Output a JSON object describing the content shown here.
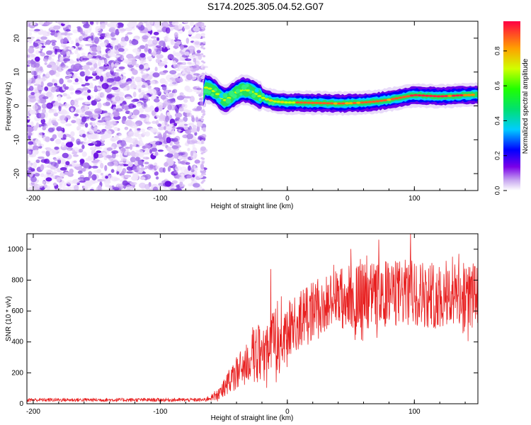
{
  "title": "S174.2025.305.04.52.G07",
  "colors": {
    "snr_line": "#e82020",
    "axis": "#000000",
    "background": "#ffffff"
  },
  "chart_data": [
    {
      "type": "heatmap",
      "name": "spectrogram",
      "xlabel": "Height of straight line (km)",
      "ylabel": "Frequency (Hz)",
      "xlim": [
        -205,
        150
      ],
      "ylim": [
        -25,
        25
      ],
      "x_ticks": [
        -200,
        -100,
        0,
        100
      ],
      "y_ticks": [
        -20,
        -10,
        0,
        10,
        20
      ],
      "noise_region_x": [
        -205,
        -65
      ],
      "signal_path": [
        {
          "x": -65,
          "y": 5.5
        },
        {
          "x": -60,
          "y": 5.0
        },
        {
          "x": -55,
          "y": 3.5
        },
        {
          "x": -50,
          "y": 1.5
        },
        {
          "x": -45,
          "y": 2.5
        },
        {
          "x": -40,
          "y": 4.0
        },
        {
          "x": -35,
          "y": 4.8
        },
        {
          "x": -30,
          "y": 4.5
        },
        {
          "x": -25,
          "y": 3.5
        },
        {
          "x": -20,
          "y": 2.5
        },
        {
          "x": -15,
          "y": 1.8
        },
        {
          "x": -10,
          "y": 1.3
        },
        {
          "x": 0,
          "y": 1.0
        },
        {
          "x": 10,
          "y": 1.0
        },
        {
          "x": 20,
          "y": 0.9
        },
        {
          "x": 30,
          "y": 0.8
        },
        {
          "x": 40,
          "y": 0.7
        },
        {
          "x": 50,
          "y": 0.8
        },
        {
          "x": 60,
          "y": 1.0
        },
        {
          "x": 70,
          "y": 1.3
        },
        {
          "x": 80,
          "y": 1.8
        },
        {
          "x": 90,
          "y": 2.5
        },
        {
          "x": 100,
          "y": 3.2
        },
        {
          "x": 110,
          "y": 3.0
        },
        {
          "x": 120,
          "y": 2.8
        },
        {
          "x": 130,
          "y": 3.0
        },
        {
          "x": 140,
          "y": 3.2
        },
        {
          "x": 150,
          "y": 3.3
        }
      ],
      "colorbar": {
        "label": "Normalized spectral amplitude",
        "range": [
          0,
          0.97
        ],
        "ticks": [
          "0.0",
          "0.2",
          "0.4",
          "0.6",
          "0.8"
        ]
      }
    },
    {
      "type": "line",
      "name": "snr",
      "xlabel": "Height of straight line (km)",
      "ylabel": "SNR (10 * v/v)",
      "xlim": [
        -205,
        150
      ],
      "ylim": [
        0,
        1100
      ],
      "x_ticks": [
        -200,
        -100,
        0,
        100
      ],
      "y_ticks": [
        0,
        200,
        400,
        600,
        800,
        1000
      ],
      "trend": [
        {
          "x": -205,
          "y": 25
        },
        {
          "x": -65,
          "y": 25
        },
        {
          "x": -55,
          "y": 60
        },
        {
          "x": -45,
          "y": 150
        },
        {
          "x": -35,
          "y": 240
        },
        {
          "x": -25,
          "y": 320
        },
        {
          "x": -15,
          "y": 380
        },
        {
          "x": -5,
          "y": 450
        },
        {
          "x": 5,
          "y": 510
        },
        {
          "x": 15,
          "y": 570
        },
        {
          "x": 25,
          "y": 620
        },
        {
          "x": 35,
          "y": 660
        },
        {
          "x": 45,
          "y": 690
        },
        {
          "x": 60,
          "y": 700
        },
        {
          "x": 80,
          "y": 710
        },
        {
          "x": 100,
          "y": 720
        },
        {
          "x": 120,
          "y": 700
        },
        {
          "x": 150,
          "y": 700
        }
      ],
      "peaks": [
        {
          "x": -13,
          "y": 870
        },
        {
          "x": 97,
          "y": 1100
        },
        {
          "x": 72,
          "y": 1060
        },
        {
          "x": 50,
          "y": 1000
        },
        {
          "x": 130,
          "y": 950
        }
      ]
    }
  ]
}
